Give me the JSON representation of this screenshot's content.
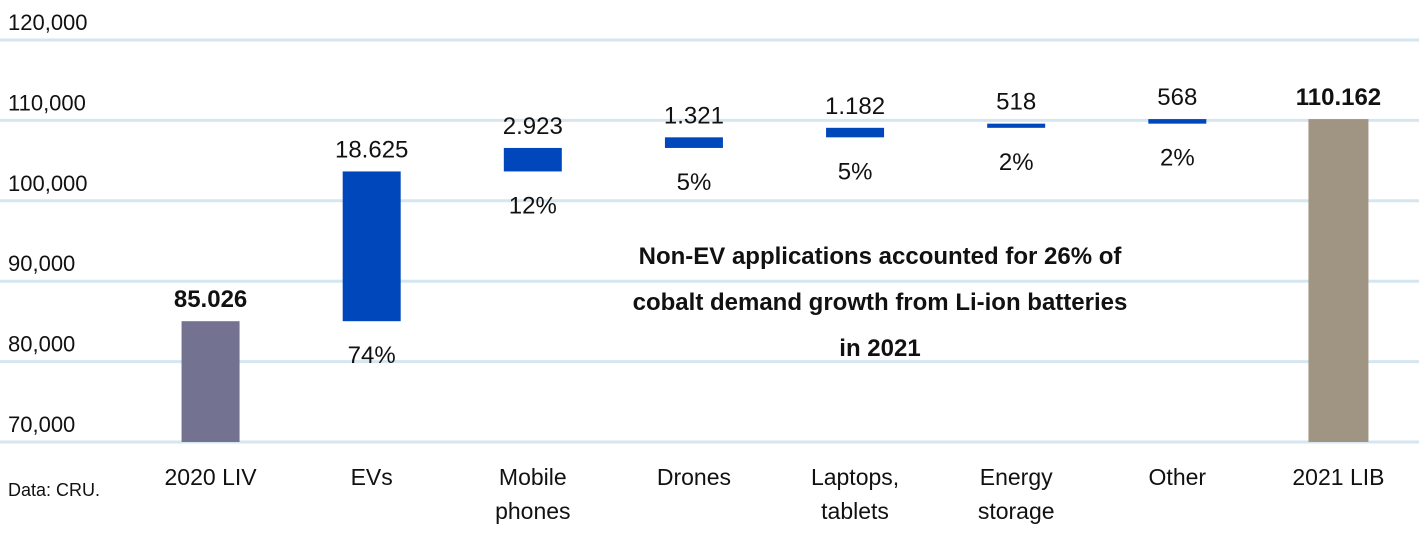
{
  "chart_data": {
    "type": "waterfall",
    "categories": [
      "2020 LIV",
      "EVs",
      "Mobile phones",
      "Drones",
      "Laptops, tablets",
      "Energy storage",
      "Other",
      "2021 LIB"
    ],
    "values": [
      85026,
      18625,
      2923,
      1321,
      1182,
      518,
      568,
      110162
    ],
    "value_labels": [
      "85.026",
      "18.625",
      "2.923",
      "1.321",
      "1.182",
      "518",
      "568",
      "110.162"
    ],
    "share_labels": [
      null,
      "74%",
      "12%",
      "5%",
      "5%",
      "2%",
      "2%",
      null
    ],
    "is_total": [
      true,
      false,
      false,
      false,
      false,
      false,
      false,
      true
    ],
    "colors": [
      "#737391",
      "#0047bb",
      "#0047bb",
      "#0047bb",
      "#0047bb",
      "#0047bb",
      "#0047bb",
      "#a09583"
    ],
    "ylim": [
      70000,
      120000
    ],
    "yticks": [
      {
        "value": 70000,
        "label": "70,000"
      },
      {
        "value": 80000,
        "label": "80,000"
      },
      {
        "value": 90000,
        "label": "90,000"
      },
      {
        "value": 100000,
        "label": "100,000"
      },
      {
        "value": 110000,
        "label": "110,000"
      },
      {
        "value": 120000,
        "label": "120,000"
      }
    ],
    "grid": true,
    "annotation": "Non-EV applications accounted for 26% of cobalt demand growth from Li-ion batteries in 2021",
    "source": "Data: CRU."
  }
}
